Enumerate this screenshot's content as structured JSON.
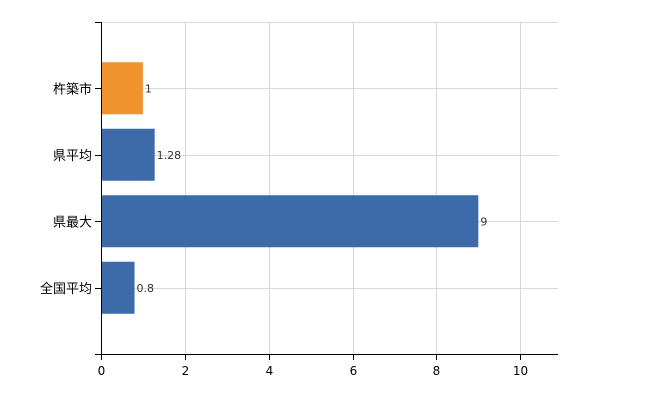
{
  "chart_data": {
    "type": "bar",
    "orientation": "horizontal",
    "categories": [
      "杵築市",
      "県平均",
      "県最大",
      "全国平均"
    ],
    "values": [
      1,
      1.28,
      9,
      0.8
    ],
    "value_labels": [
      "1",
      "1.28",
      "9",
      "0.8"
    ],
    "bar_colors": [
      "#f0932f",
      "#3d6aa8",
      "#3d6aa8",
      "#3d6aa8"
    ],
    "xlim": [
      0,
      10.9
    ],
    "x_ticks": [
      0,
      2,
      4,
      6,
      8,
      10
    ],
    "x_tick_labels": [
      "0",
      "2",
      "4",
      "6",
      "8",
      "10"
    ],
    "grid": true,
    "legend": "none"
  }
}
